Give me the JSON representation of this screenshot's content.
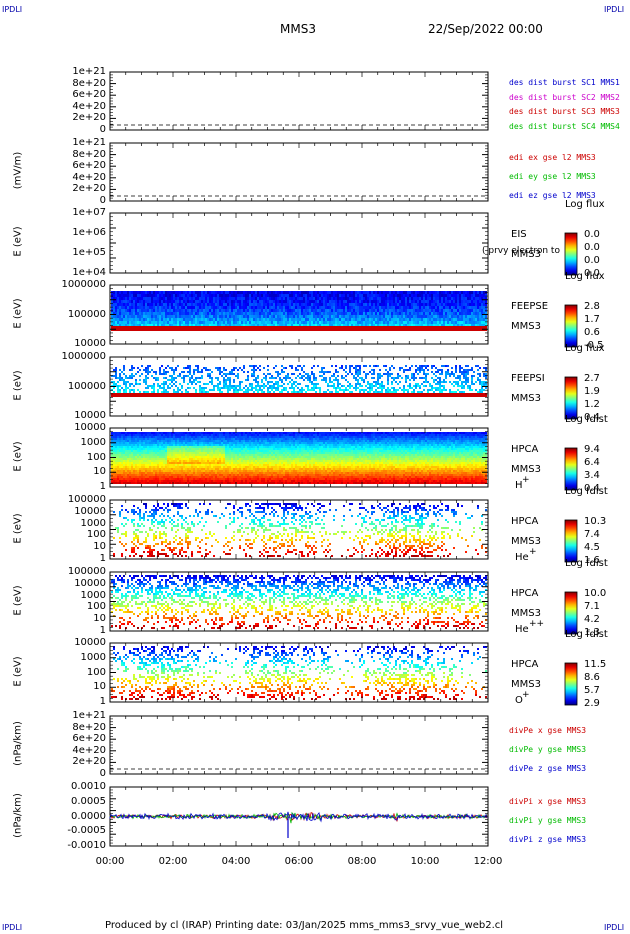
{
  "corners": {
    "label": "IPDLI"
  },
  "header": {
    "title": "MMS3",
    "date": "22/Sep/2022 00:00"
  },
  "footer": {
    "text": "Produced by cl (IRAP)   Printing date: 03/Jan/2025   mms_mms3_srvy_vue_web2.cl"
  },
  "chart_data": [
    {
      "type": "line",
      "id": "des-dist",
      "ylabel": "",
      "yticks": [
        "1e+21",
        "8e+20",
        "6e+20",
        "4e+20",
        "2e+20",
        "0"
      ],
      "series": [
        {
          "name": "des dist burst SC1 MMS1",
          "color": "#0000cc"
        },
        {
          "name": "des dist burst SC2 MMS2",
          "color": "#cc00cc"
        },
        {
          "name": "des dist burst SC3 MMS3",
          "color": "#cc0000"
        },
        {
          "name": "des dist burst SC4 MMS4",
          "color": "#00bb00"
        }
      ]
    },
    {
      "type": "line",
      "id": "edi",
      "ylabel": "(mV/m)",
      "yticks": [
        "1e+21",
        "8e+20",
        "6e+20",
        "4e+20",
        "2e+20",
        "0"
      ],
      "series": [
        {
          "name": "edi ex gse l2 MMS3",
          "color": "#cc0000"
        },
        {
          "name": "edi ey gse l2 MMS3",
          "color": "#00bb00"
        },
        {
          "name": "edi ez gse l2 MMS3",
          "color": "#0000cc"
        }
      ]
    },
    {
      "type": "heatmap",
      "id": "eis",
      "ylabel": "E (eV)",
      "yticks": [
        "1e+07",
        "1e+06",
        "1e+05",
        "1e+04"
      ],
      "labels": [
        "EIS",
        "MMS3"
      ],
      "overlay": "( prvy electron to",
      "colorbar": {
        "title": "Log flux",
        "values": [
          "0.0",
          "0.0",
          "0.0",
          "0.0"
        ]
      }
    },
    {
      "type": "heatmap",
      "id": "feepse",
      "ylabel": "E (eV)",
      "yticks": [
        "1000000",
        "100000",
        "10000"
      ],
      "labels": [
        "FEEPSE",
        "MMS3"
      ],
      "colorbar": {
        "title": "Log flux",
        "values": [
          "2.8",
          "1.7",
          "0.6",
          "-0.5"
        ]
      }
    },
    {
      "type": "heatmap",
      "id": "feepsi",
      "ylabel": "E (eV)",
      "yticks": [
        "1000000",
        "100000",
        "10000"
      ],
      "labels": [
        "FEEPSI",
        "MMS3"
      ],
      "colorbar": {
        "title": "Log flux",
        "values": [
          "2.7",
          "1.9",
          "1.2",
          "0.4"
        ]
      }
    },
    {
      "type": "heatmap",
      "id": "hpca-h",
      "ylabel": "E (eV)",
      "yticks": [
        "10000",
        "1000",
        "100",
        "10",
        "1"
      ],
      "labels": [
        "HPCA",
        "MMS3"
      ],
      "species": "H",
      "species_sup": "+",
      "colorbar": {
        "title": "Log fdist",
        "values": [
          "9.4",
          "6.4",
          "3.4",
          "0.4"
        ]
      }
    },
    {
      "type": "heatmap",
      "id": "hpca-he",
      "ylabel": "E (eV)",
      "yticks": [
        "100000",
        "10000",
        "1000",
        "100",
        "10",
        "1"
      ],
      "labels": [
        "HPCA",
        "MMS3"
      ],
      "species": "He",
      "species_sup": "+",
      "colorbar": {
        "title": "Log fdist",
        "values": [
          "10.3",
          "7.4",
          "4.5",
          "1.6"
        ]
      }
    },
    {
      "type": "heatmap",
      "id": "hpca-hepp",
      "ylabel": "E (eV)",
      "yticks": [
        "100000",
        "10000",
        "1000",
        "100",
        "10",
        "1"
      ],
      "labels": [
        "HPCA",
        "MMS3"
      ],
      "species": "He",
      "species_sup": "++",
      "colorbar": {
        "title": "Log fdist",
        "values": [
          "10.0",
          "7.1",
          "4.2",
          "1.3"
        ]
      }
    },
    {
      "type": "heatmap",
      "id": "hpca-o",
      "ylabel": "E (eV)",
      "yticks": [
        "10000",
        "1000",
        "100",
        "10",
        "1"
      ],
      "labels": [
        "HPCA",
        "MMS3"
      ],
      "species": "O",
      "species_sup": "+",
      "colorbar": {
        "title": "Log fdist",
        "values": [
          "11.5",
          "8.6",
          "5.7",
          "2.9"
        ]
      }
    },
    {
      "type": "line",
      "id": "divpe",
      "ylabel": "(nPa/km)",
      "yticks": [
        "1e+21",
        "8e+20",
        "6e+20",
        "4e+20",
        "2e+20",
        "0"
      ],
      "series": [
        {
          "name": "divPe x gse MMS3",
          "color": "#cc0000"
        },
        {
          "name": "divPe y gse MMS3",
          "color": "#00bb00"
        },
        {
          "name": "divPe z gse MMS3",
          "color": "#0000cc"
        }
      ]
    },
    {
      "type": "line",
      "id": "divpi",
      "ylabel": "(nPa/km)",
      "yticks": [
        "0.0010",
        "0.0005",
        "0.0000",
        "-0.0005",
        "-0.0010"
      ],
      "series": [
        {
          "name": "divPi x gse MMS3",
          "color": "#cc0000"
        },
        {
          "name": "divPi y gse MMS3",
          "color": "#00bb00"
        },
        {
          "name": "divPi z gse MMS3",
          "color": "#0000cc"
        }
      ]
    }
  ],
  "xaxis": {
    "ticks": [
      "00:00",
      "02:00",
      "04:00",
      "06:00",
      "08:00",
      "10:00",
      "12:00"
    ]
  }
}
